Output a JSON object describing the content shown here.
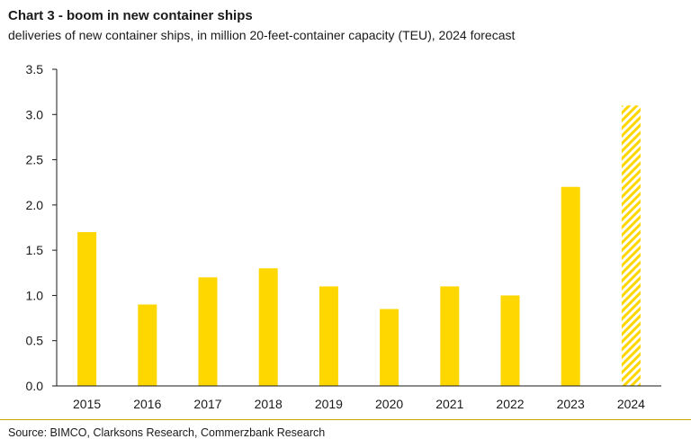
{
  "header": {
    "title": "Chart 3 - boom in new container ships",
    "subtitle": "deliveries of new container ships, in million 20-feet-container capacity (TEU), 2024 forecast"
  },
  "footer": {
    "source": "Source: BIMCO, Clarksons Research, Commerzbank Research"
  },
  "chart_data": {
    "type": "bar",
    "categories": [
      "2015",
      "2016",
      "2017",
      "2018",
      "2019",
      "2020",
      "2021",
      "2022",
      "2023",
      "2024"
    ],
    "values": [
      1.7,
      0.9,
      1.2,
      1.3,
      1.1,
      0.85,
      1.1,
      1.0,
      2.2,
      3.1
    ],
    "forecast": [
      false,
      false,
      false,
      false,
      false,
      false,
      false,
      false,
      false,
      true
    ],
    "ylim": [
      0,
      3.5
    ],
    "yticks": [
      "0.0",
      "0.5",
      "1.0",
      "1.5",
      "2.0",
      "2.5",
      "3.0",
      "3.5"
    ],
    "grid": false,
    "legend": "none",
    "colors": {
      "bar": "#ffd700",
      "forecast_hatch": "#ffd700",
      "axis": "#1a1a1a"
    }
  }
}
